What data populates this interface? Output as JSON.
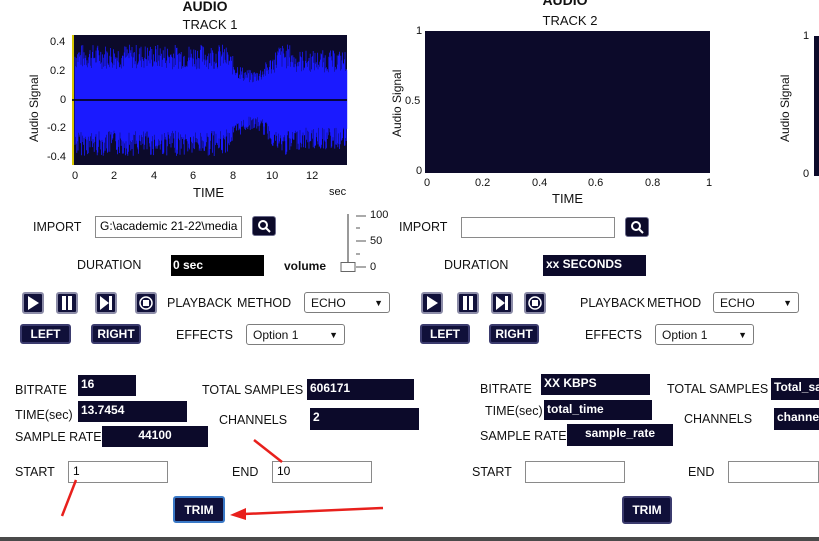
{
  "track1": {
    "header": "AUDIO",
    "title": "TRACK 1",
    "ylabel": "Audio Signal",
    "xlabel": "TIME",
    "xunit": "sec",
    "yticks": [
      "0.4",
      "0.2",
      "0",
      "-0.2",
      "-0.4"
    ],
    "xticks": [
      "0",
      "2",
      "4",
      "6",
      "8",
      "10",
      "12"
    ],
    "import_label": "IMPORT",
    "import_value": "G:\\academic 21-22\\media",
    "duration_label": "DURATION",
    "duration_value": "0 sec",
    "volume_label": "volume",
    "volume_ticks": [
      "100",
      "50",
      "0"
    ],
    "volume_level": 0,
    "playback_label": "PLAYBACK",
    "method_label": "METHOD",
    "method_value": "ECHO",
    "left_label": "LEFT",
    "right_label": "RIGHT",
    "effects_label": "EFFECTS",
    "effects_value": "Option 1",
    "bitrate_label": "BITRATE",
    "bitrate_value": "16",
    "time_label": "TIME(sec)",
    "time_value": "13.7454",
    "samplerate_label": "SAMPLE RATE",
    "samplerate_value": "44100",
    "totalsamples_label": "TOTAL SAMPLES",
    "totalsamples_value": "606171",
    "channels_label": "CHANNELS",
    "channels_value": "2",
    "start_label": "START",
    "start_value": "1",
    "end_label": "END",
    "end_value": "10",
    "trim_label": "TRIM"
  },
  "track2": {
    "header": "AUDIO",
    "title": "TRACK 2",
    "ylabel": "Audio Signal",
    "xlabel": "TIME",
    "yticks": [
      "1",
      "0.5",
      "0"
    ],
    "xticks": [
      "0",
      "0.2",
      "0.4",
      "0.6",
      "0.8",
      "1"
    ],
    "import_label": "IMPORT",
    "import_value": "",
    "duration_label": "DURATION",
    "duration_value": "xx SECONDS",
    "playback_label": "PLAYBACK",
    "method_label": "METHOD",
    "method_value": "ECHO",
    "left_label": "LEFT",
    "right_label": "RIGHT",
    "effects_label": "EFFECTS",
    "effects_value": "Option 1",
    "bitrate_label": "BITRATE",
    "bitrate_value": "XX KBPS",
    "time_label": "TIME(sec)",
    "time_value": "total_time",
    "samplerate_label": "SAMPLE RATE",
    "samplerate_value": "sample_rate",
    "totalsamples_label": "TOTAL SAMPLES",
    "totalsamples_value": "Total_sa",
    "channels_label": "CHANNELS",
    "channels_value": "channe",
    "start_label": "START",
    "start_value": "",
    "end_label": "END",
    "end_value": "",
    "trim_label": "TRIM"
  },
  "track3": {
    "ylabel": "Audio Signal",
    "yticks": [
      "1",
      "0"
    ]
  },
  "colors": {
    "waveform": "#1a1aff",
    "plot_bg": "#0c0a2a",
    "button_bg": "#10103a",
    "annotation_arrow": "#e8201c",
    "cursor_line": "#d6c600"
  }
}
